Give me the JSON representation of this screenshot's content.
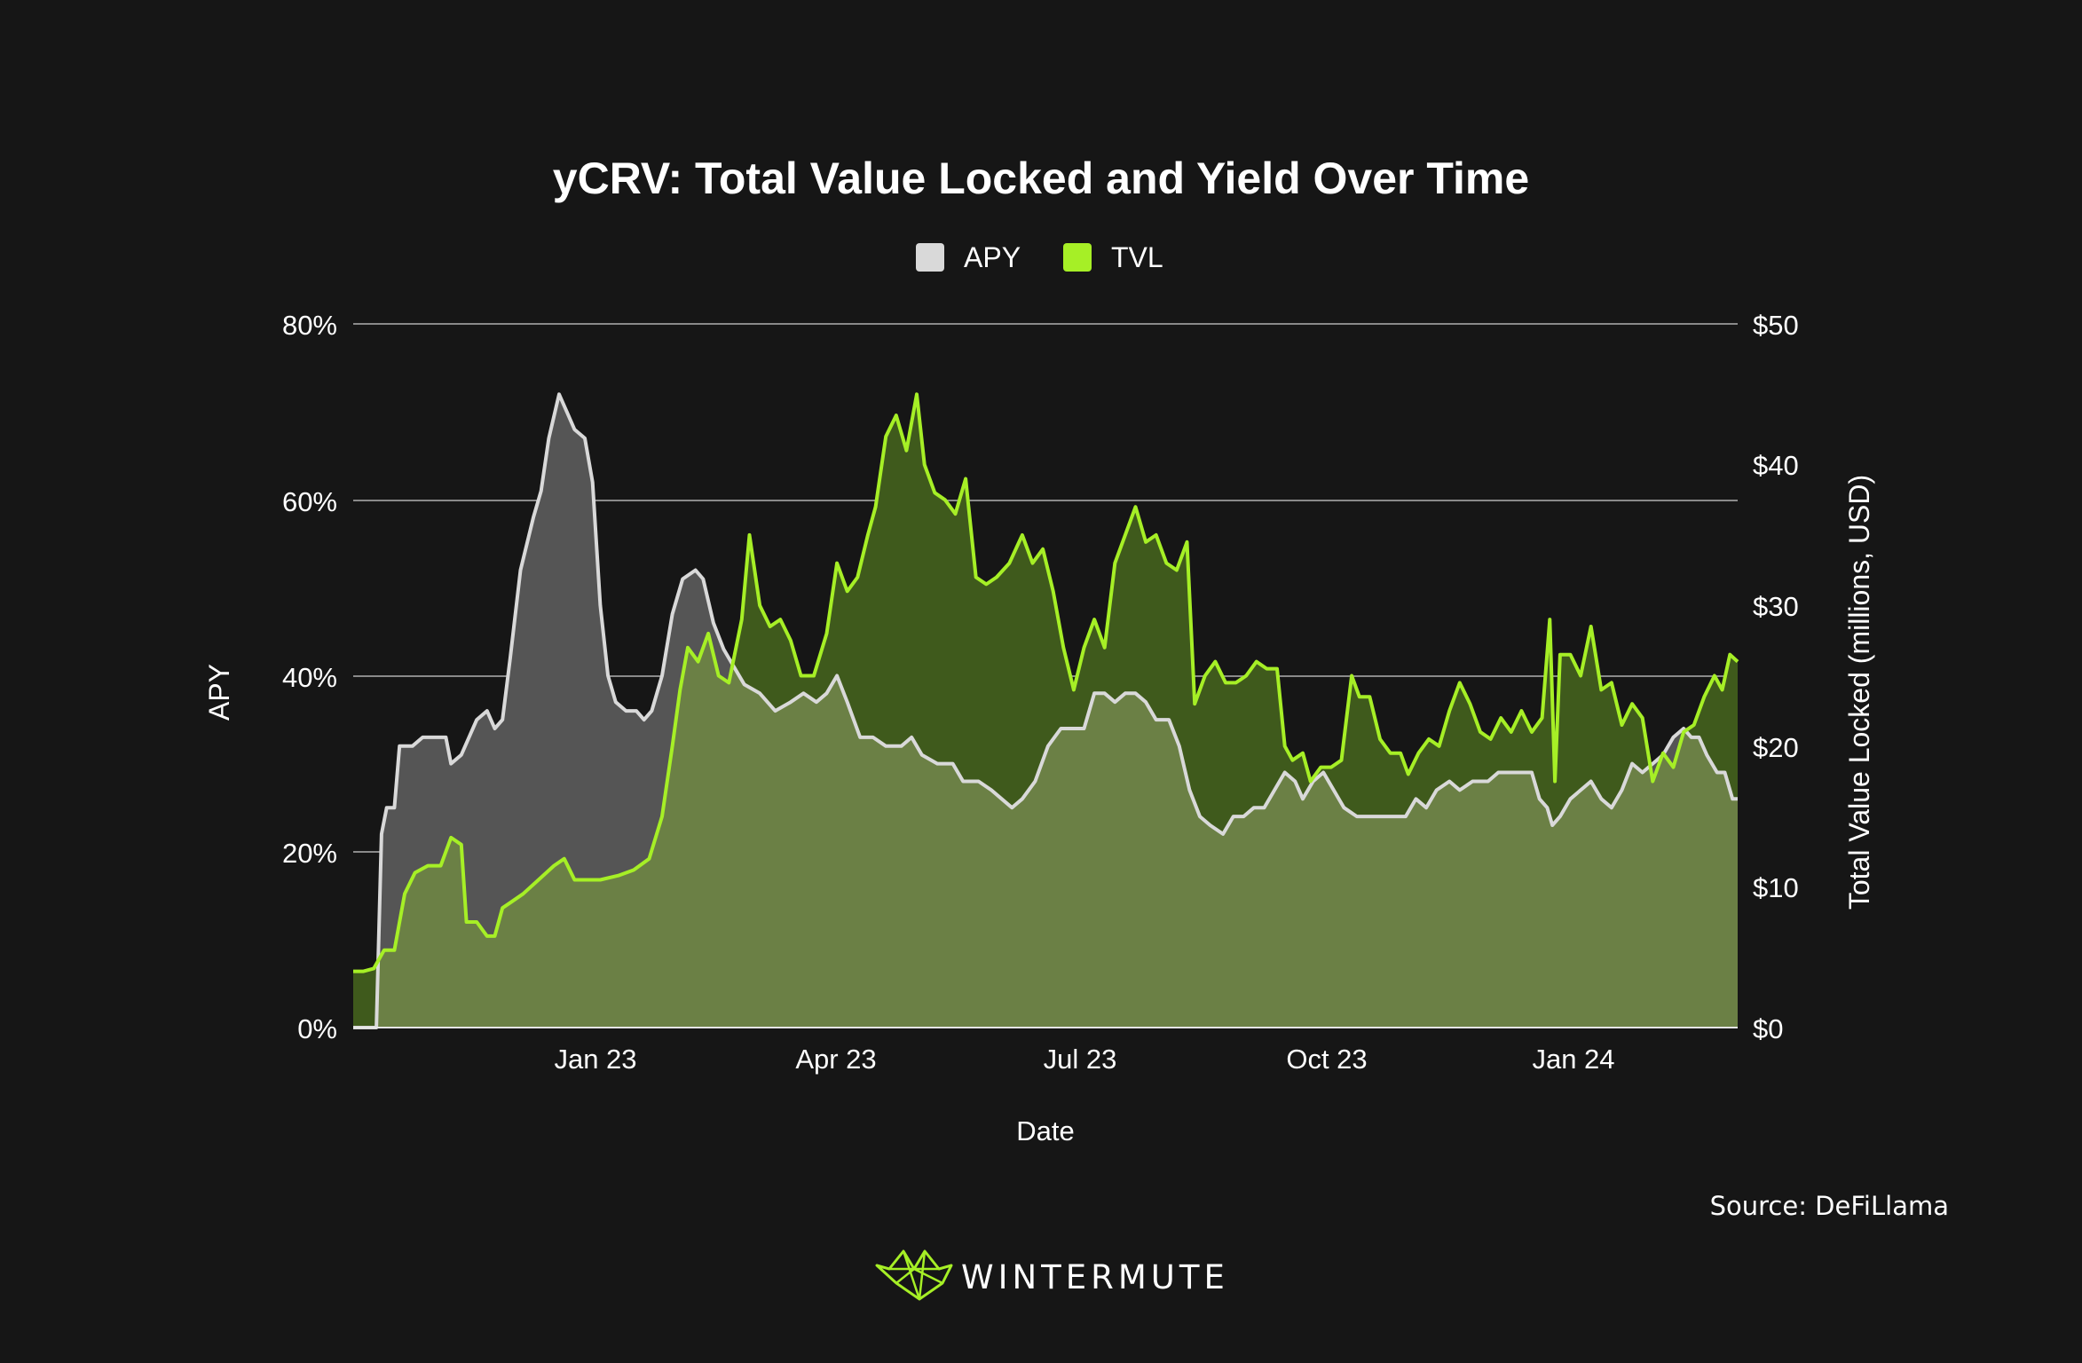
{
  "chart_data": {
    "type": "area",
    "title": "yCRV: Total Value Locked and Yield Over Time",
    "xlabel": "Date",
    "ylabel_left": "APY",
    "ylabel_right": "Total Value Locked (millions, USD)",
    "x_ticks": [
      "Jan 23",
      "Apr 23",
      "Jul 23",
      "Oct 23",
      "Jan 24"
    ],
    "x_range": [
      "2022-10-01",
      "2024-03-22"
    ],
    "y_left_range": [
      0,
      80
    ],
    "y_left_ticks": [
      "0%",
      "20%",
      "40%",
      "60%",
      "80%"
    ],
    "y_right_range": [
      0,
      50
    ],
    "y_right_ticks": [
      "$0",
      "$10",
      "$20",
      "$30",
      "$40",
      "$50"
    ],
    "grid": true,
    "legend_position": "top-center",
    "series": [
      {
        "name": "APY",
        "axis": "left",
        "unit": "%",
        "color": "#d9d9d9",
        "fill": "#555555",
        "points": [
          [
            "2022-10-01",
            0
          ],
          [
            "2022-10-10",
            0
          ],
          [
            "2022-10-12",
            22
          ],
          [
            "2022-10-14",
            25
          ],
          [
            "2022-10-17",
            25
          ],
          [
            "2022-10-19",
            32
          ],
          [
            "2022-10-24",
            32
          ],
          [
            "2022-10-28",
            33
          ],
          [
            "2022-11-06",
            33
          ],
          [
            "2022-11-08",
            30
          ],
          [
            "2022-11-12",
            31
          ],
          [
            "2022-11-18",
            35
          ],
          [
            "2022-11-22",
            36
          ],
          [
            "2022-11-25",
            34
          ],
          [
            "2022-11-28",
            35
          ],
          [
            "2022-12-01",
            42
          ],
          [
            "2022-12-05",
            52
          ],
          [
            "2022-12-10",
            58
          ],
          [
            "2022-12-13",
            61
          ],
          [
            "2022-12-16",
            67
          ],
          [
            "2022-12-20",
            72
          ],
          [
            "2022-12-23",
            70
          ],
          [
            "2022-12-26",
            68
          ],
          [
            "2022-12-30",
            67
          ],
          [
            "2023-01-02",
            62
          ],
          [
            "2023-01-05",
            48
          ],
          [
            "2023-01-08",
            40
          ],
          [
            "2023-01-11",
            37
          ],
          [
            "2023-01-15",
            36
          ],
          [
            "2023-01-19",
            36
          ],
          [
            "2023-01-22",
            35
          ],
          [
            "2023-01-25",
            36
          ],
          [
            "2023-01-29",
            40
          ],
          [
            "2023-02-02",
            47
          ],
          [
            "2023-02-06",
            51
          ],
          [
            "2023-02-11",
            52
          ],
          [
            "2023-02-14",
            51
          ],
          [
            "2023-02-18",
            46
          ],
          [
            "2023-02-22",
            43
          ],
          [
            "2023-02-26",
            41
          ],
          [
            "2023-03-02",
            39
          ],
          [
            "2023-03-08",
            38
          ],
          [
            "2023-03-14",
            36
          ],
          [
            "2023-03-20",
            37
          ],
          [
            "2023-03-25",
            38
          ],
          [
            "2023-03-30",
            37
          ],
          [
            "2023-04-03",
            38
          ],
          [
            "2023-04-07",
            40
          ],
          [
            "2023-04-11",
            37
          ],
          [
            "2023-04-16",
            33
          ],
          [
            "2023-04-21",
            33
          ],
          [
            "2023-04-26",
            32
          ],
          [
            "2023-05-02",
            32
          ],
          [
            "2023-05-06",
            33
          ],
          [
            "2023-05-10",
            31
          ],
          [
            "2023-05-16",
            30
          ],
          [
            "2023-05-22",
            30
          ],
          [
            "2023-05-26",
            28
          ],
          [
            "2023-06-01",
            28
          ],
          [
            "2023-06-06",
            27
          ],
          [
            "2023-06-10",
            26
          ],
          [
            "2023-06-14",
            25
          ],
          [
            "2023-06-18",
            26
          ],
          [
            "2023-06-23",
            28
          ],
          [
            "2023-06-28",
            32
          ],
          [
            "2023-07-03",
            34
          ],
          [
            "2023-07-07",
            34
          ],
          [
            "2023-07-12",
            34
          ],
          [
            "2023-07-16",
            38
          ],
          [
            "2023-07-20",
            38
          ],
          [
            "2023-07-24",
            37
          ],
          [
            "2023-07-28",
            38
          ],
          [
            "2023-08-01",
            38
          ],
          [
            "2023-08-05",
            37
          ],
          [
            "2023-08-09",
            35
          ],
          [
            "2023-08-14",
            35
          ],
          [
            "2023-08-18",
            32
          ],
          [
            "2023-08-22",
            27
          ],
          [
            "2023-08-26",
            24
          ],
          [
            "2023-08-30",
            23
          ],
          [
            "2023-09-04",
            22
          ],
          [
            "2023-09-08",
            24
          ],
          [
            "2023-09-12",
            24
          ],
          [
            "2023-09-16",
            25
          ],
          [
            "2023-09-20",
            25
          ],
          [
            "2023-09-24",
            27
          ],
          [
            "2023-09-28",
            29
          ],
          [
            "2023-10-02",
            28
          ],
          [
            "2023-10-05",
            26
          ],
          [
            "2023-10-09",
            28
          ],
          [
            "2023-10-13",
            29
          ],
          [
            "2023-10-17",
            27
          ],
          [
            "2023-10-21",
            25
          ],
          [
            "2023-10-26",
            24
          ],
          [
            "2023-11-02",
            24
          ],
          [
            "2023-11-08",
            24
          ],
          [
            "2023-11-14",
            24
          ],
          [
            "2023-11-18",
            26
          ],
          [
            "2023-11-22",
            25
          ],
          [
            "2023-11-26",
            27
          ],
          [
            "2023-12-01",
            28
          ],
          [
            "2023-12-05",
            27
          ],
          [
            "2023-12-10",
            28
          ],
          [
            "2023-12-16",
            28
          ],
          [
            "2023-12-20",
            29
          ],
          [
            "2023-12-28",
            29
          ],
          [
            "2024-01-02",
            29
          ],
          [
            "2024-01-05",
            26
          ],
          [
            "2024-01-08",
            25
          ],
          [
            "2024-01-10",
            23
          ],
          [
            "2024-01-13",
            24
          ],
          [
            "2024-01-17",
            26
          ],
          [
            "2024-01-21",
            27
          ],
          [
            "2024-01-25",
            28
          ],
          [
            "2024-01-29",
            26
          ],
          [
            "2024-02-02",
            25
          ],
          [
            "2024-02-06",
            27
          ],
          [
            "2024-02-10",
            30
          ],
          [
            "2024-02-14",
            29
          ],
          [
            "2024-02-18",
            30
          ],
          [
            "2024-02-22",
            31
          ],
          [
            "2024-02-26",
            33
          ],
          [
            "2024-03-01",
            34
          ],
          [
            "2024-03-04",
            33
          ],
          [
            "2024-03-07",
            33
          ],
          [
            "2024-03-10",
            31
          ],
          [
            "2024-03-14",
            29
          ],
          [
            "2024-03-17",
            29
          ],
          [
            "2024-03-20",
            26
          ],
          [
            "2024-03-22",
            26
          ]
        ]
      },
      {
        "name": "TVL",
        "axis": "right",
        "unit": "millions USD",
        "color": "#a6ef26",
        "fill": "#3f5a1c",
        "points": [
          [
            "2022-10-01",
            4
          ],
          [
            "2022-10-05",
            4
          ],
          [
            "2022-10-09",
            4.2
          ],
          [
            "2022-10-13",
            5.5
          ],
          [
            "2022-10-17",
            5.5
          ],
          [
            "2022-10-21",
            9.5
          ],
          [
            "2022-10-25",
            11
          ],
          [
            "2022-10-30",
            11.5
          ],
          [
            "2022-11-04",
            11.5
          ],
          [
            "2022-11-08",
            13.5
          ],
          [
            "2022-11-12",
            13
          ],
          [
            "2022-11-14",
            7.5
          ],
          [
            "2022-11-18",
            7.5
          ],
          [
            "2022-11-22",
            6.5
          ],
          [
            "2022-11-25",
            6.5
          ],
          [
            "2022-11-28",
            8.5
          ],
          [
            "2022-12-02",
            9
          ],
          [
            "2022-12-06",
            9.5
          ],
          [
            "2022-12-12",
            10.5
          ],
          [
            "2022-12-18",
            11.5
          ],
          [
            "2022-12-22",
            12
          ],
          [
            "2022-12-26",
            10.5
          ],
          [
            "2022-12-30",
            10.5
          ],
          [
            "2023-01-05",
            10.5
          ],
          [
            "2023-01-12",
            10.8
          ],
          [
            "2023-01-18",
            11.2
          ],
          [
            "2023-01-24",
            12
          ],
          [
            "2023-01-29",
            15
          ],
          [
            "2023-02-02",
            20
          ],
          [
            "2023-02-05",
            24
          ],
          [
            "2023-02-08",
            27
          ],
          [
            "2023-02-12",
            26
          ],
          [
            "2023-02-16",
            28
          ],
          [
            "2023-02-20",
            25
          ],
          [
            "2023-02-24",
            24.5
          ],
          [
            "2023-03-01",
            29
          ],
          [
            "2023-03-04",
            35
          ],
          [
            "2023-03-08",
            30
          ],
          [
            "2023-03-12",
            28.5
          ],
          [
            "2023-03-16",
            29
          ],
          [
            "2023-03-20",
            27.5
          ],
          [
            "2023-03-24",
            25
          ],
          [
            "2023-03-29",
            25
          ],
          [
            "2023-04-03",
            28
          ],
          [
            "2023-04-07",
            33
          ],
          [
            "2023-04-11",
            31
          ],
          [
            "2023-04-15",
            32
          ],
          [
            "2023-04-19",
            35
          ],
          [
            "2023-04-22",
            37
          ],
          [
            "2023-04-26",
            42
          ],
          [
            "2023-04-30",
            43.5
          ],
          [
            "2023-05-04",
            41
          ],
          [
            "2023-05-08",
            45
          ],
          [
            "2023-05-11",
            40
          ],
          [
            "2023-05-15",
            38
          ],
          [
            "2023-05-19",
            37.5
          ],
          [
            "2023-05-23",
            36.5
          ],
          [
            "2023-05-27",
            39
          ],
          [
            "2023-05-31",
            32
          ],
          [
            "2023-06-04",
            31.5
          ],
          [
            "2023-06-08",
            32
          ],
          [
            "2023-06-13",
            33
          ],
          [
            "2023-06-18",
            35
          ],
          [
            "2023-06-22",
            33
          ],
          [
            "2023-06-26",
            34
          ],
          [
            "2023-06-30",
            31
          ],
          [
            "2023-07-04",
            27
          ],
          [
            "2023-07-08",
            24
          ],
          [
            "2023-07-12",
            27
          ],
          [
            "2023-07-16",
            29
          ],
          [
            "2023-07-20",
            27
          ],
          [
            "2023-07-24",
            33
          ],
          [
            "2023-07-28",
            35
          ],
          [
            "2023-08-01",
            37
          ],
          [
            "2023-08-05",
            34.5
          ],
          [
            "2023-08-09",
            35
          ],
          [
            "2023-08-13",
            33
          ],
          [
            "2023-08-17",
            32.5
          ],
          [
            "2023-08-21",
            34.5
          ],
          [
            "2023-08-24",
            23
          ],
          [
            "2023-08-28",
            25
          ],
          [
            "2023-09-01",
            26
          ],
          [
            "2023-09-05",
            24.5
          ],
          [
            "2023-09-09",
            24.5
          ],
          [
            "2023-09-13",
            25
          ],
          [
            "2023-09-17",
            26
          ],
          [
            "2023-09-21",
            25.5
          ],
          [
            "2023-09-25",
            25.5
          ],
          [
            "2023-09-28",
            20
          ],
          [
            "2023-10-01",
            19
          ],
          [
            "2023-10-05",
            19.5
          ],
          [
            "2023-10-08",
            17.5
          ],
          [
            "2023-10-12",
            18.5
          ],
          [
            "2023-10-16",
            18.5
          ],
          [
            "2023-10-20",
            19
          ],
          [
            "2023-10-24",
            25
          ],
          [
            "2023-10-27",
            23.5
          ],
          [
            "2023-10-31",
            23.5
          ],
          [
            "2023-11-04",
            20.5
          ],
          [
            "2023-11-08",
            19.5
          ],
          [
            "2023-11-12",
            19.5
          ],
          [
            "2023-11-15",
            18
          ],
          [
            "2023-11-19",
            19.5
          ],
          [
            "2023-11-23",
            20.5
          ],
          [
            "2023-11-27",
            20
          ],
          [
            "2023-12-01",
            22.5
          ],
          [
            "2023-12-05",
            24.5
          ],
          [
            "2023-12-09",
            23
          ],
          [
            "2023-12-13",
            21
          ],
          [
            "2023-12-17",
            20.5
          ],
          [
            "2023-12-21",
            22
          ],
          [
            "2023-12-25",
            21
          ],
          [
            "2023-12-29",
            22.5
          ],
          [
            "2024-01-02",
            21
          ],
          [
            "2024-01-06",
            22
          ],
          [
            "2024-01-09",
            29
          ],
          [
            "2024-01-11",
            17.5
          ],
          [
            "2024-01-13",
            26.5
          ],
          [
            "2024-01-17",
            26.5
          ],
          [
            "2024-01-21",
            25
          ],
          [
            "2024-01-25",
            28.5
          ],
          [
            "2024-01-29",
            24
          ],
          [
            "2024-02-02",
            24.5
          ],
          [
            "2024-02-06",
            21.5
          ],
          [
            "2024-02-10",
            23
          ],
          [
            "2024-02-14",
            22
          ],
          [
            "2024-02-18",
            17.5
          ],
          [
            "2024-02-22",
            19.5
          ],
          [
            "2024-02-26",
            18.5
          ],
          [
            "2024-03-01",
            21
          ],
          [
            "2024-03-05",
            21.5
          ],
          [
            "2024-03-09",
            23.5
          ],
          [
            "2024-03-13",
            25
          ],
          [
            "2024-03-16",
            24
          ],
          [
            "2024-03-19",
            26.5
          ],
          [
            "2024-03-22",
            26
          ]
        ]
      }
    ]
  },
  "source": "Source: DeFiLlama",
  "brand": "WINTERMUTE",
  "colors": {
    "background": "#161616",
    "apy_line": "#d9d9d9",
    "apy_fill": "#555555",
    "tvl_line": "#a6ef26",
    "tvl_fill": "#3f5a1c",
    "overlap_fill": "#6b8045",
    "grid": "#8a8a8a",
    "text": "#ffffff"
  },
  "icons": {
    "brand_logo": "wintermute-geometric-logo-icon"
  }
}
